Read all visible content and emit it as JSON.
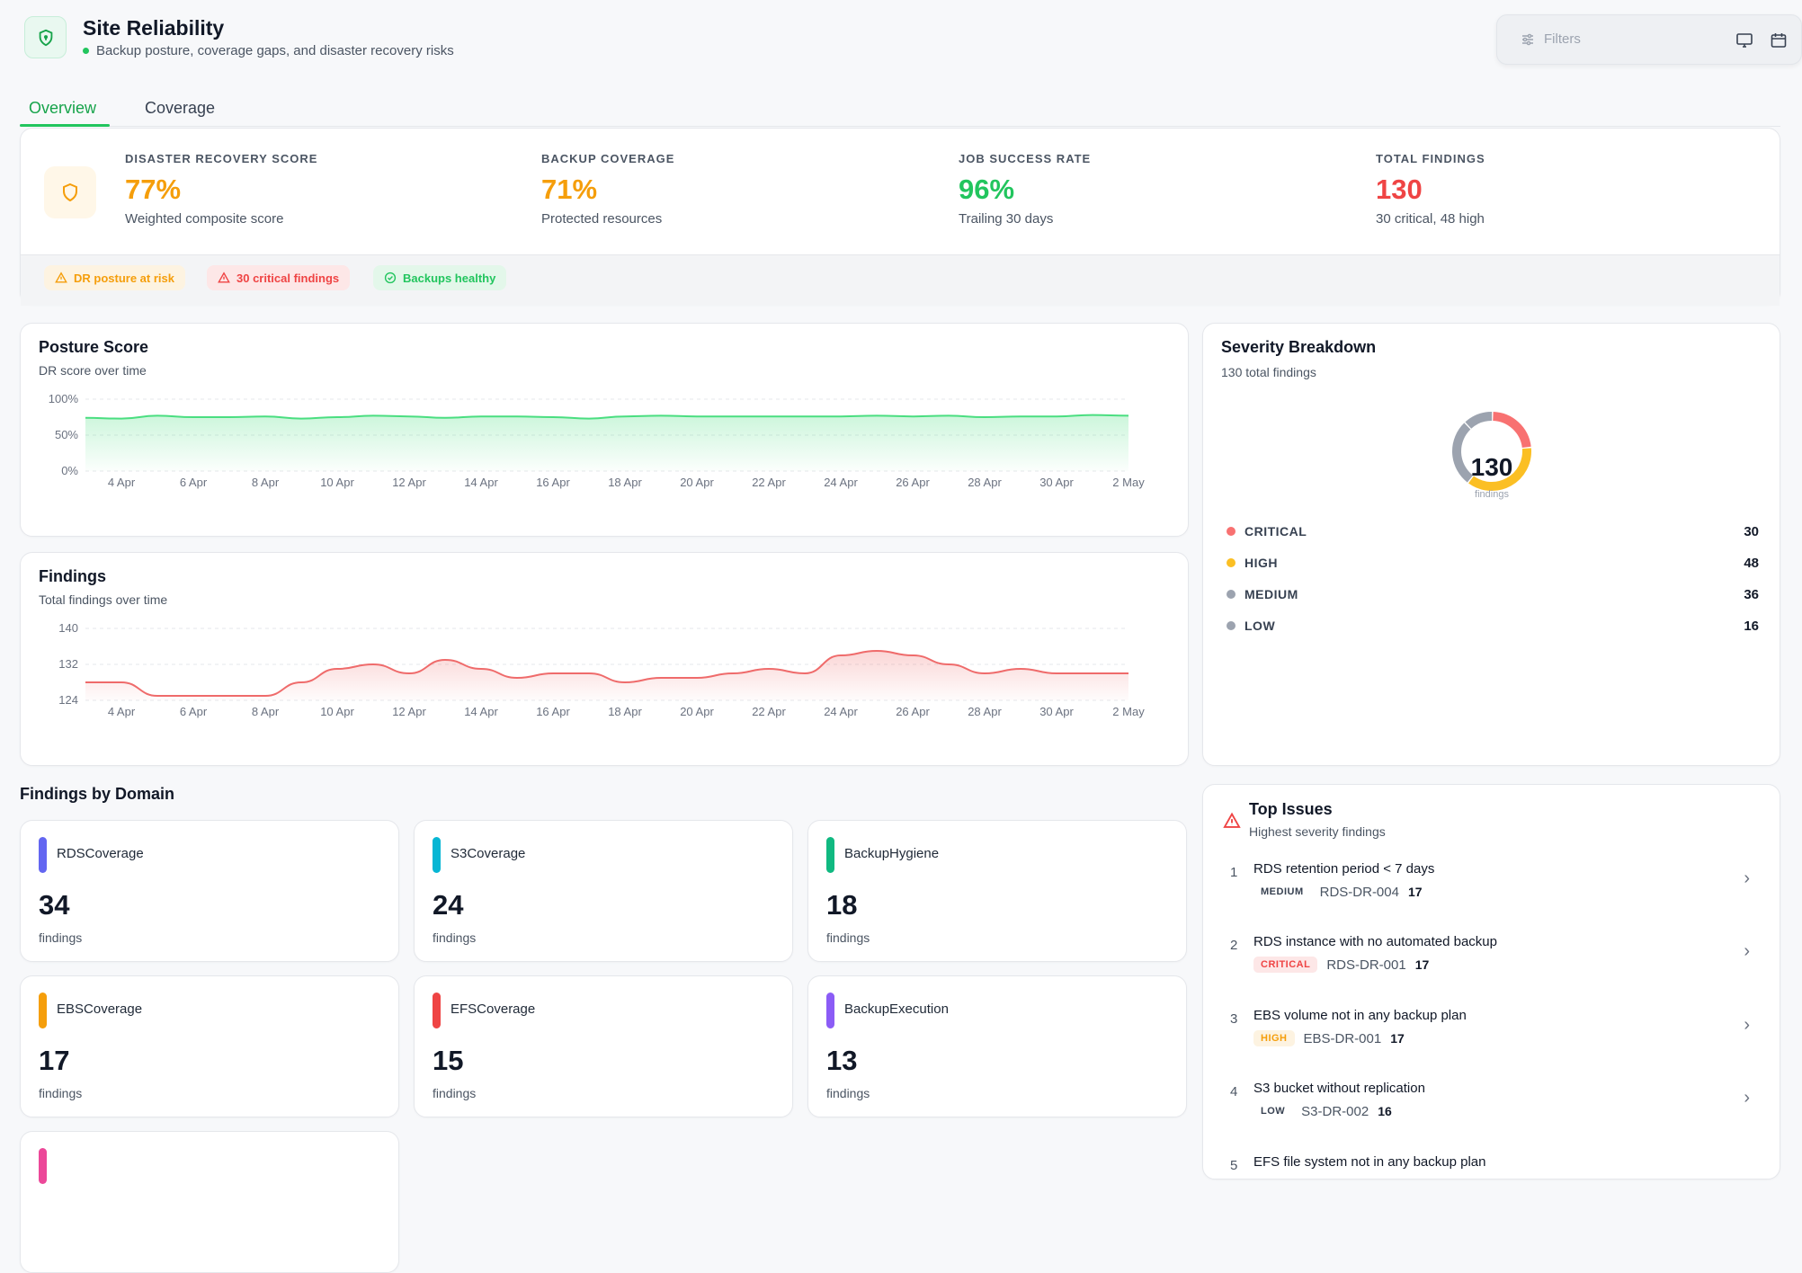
{
  "header": {
    "title": "Site Reliability",
    "subtitle": "Backup posture, coverage gaps, and disaster recovery risks",
    "filters_placeholder": "Filters"
  },
  "tabs": [
    {
      "label": "Overview",
      "active": true
    },
    {
      "label": "Coverage",
      "active": false
    }
  ],
  "kpis": [
    {
      "label": "DISASTER RECOVERY SCORE",
      "value": "77%",
      "sub": "Weighted composite score",
      "color": "#f59e0b"
    },
    {
      "label": "BACKUP COVERAGE",
      "value": "71%",
      "sub": "Protected resources",
      "color": "#f59e0b"
    },
    {
      "label": "JOB SUCCESS RATE",
      "value": "96%",
      "sub": "Trailing 30 days",
      "color": "#22c55e"
    },
    {
      "label": "TOTAL FINDINGS",
      "value": "130",
      "sub": "30 critical, 48 high",
      "color": "#ef4444"
    }
  ],
  "badges": [
    {
      "label": "DR posture at risk",
      "icon": "warning-icon",
      "color": "#f59e0b",
      "bg": "#fdf3e1"
    },
    {
      "label": "30 critical findings",
      "icon": "warning-icon",
      "color": "#ef4444",
      "bg": "#fde7e7"
    },
    {
      "label": "Backups healthy",
      "icon": "check-circle-icon",
      "color": "#22c55e",
      "bg": "#e3f7ea"
    }
  ],
  "posture_chart": {
    "title": "Posture Score",
    "subtitle": "DR score over time",
    "color": "#4ade80",
    "chart_data": {
      "type": "area",
      "x": [
        "3 Apr",
        "4 Apr",
        "5 Apr",
        "6 Apr",
        "7 Apr",
        "8 Apr",
        "9 Apr",
        "10 Apr",
        "11 Apr",
        "12 Apr",
        "13 Apr",
        "14 Apr",
        "15 Apr",
        "16 Apr",
        "17 Apr",
        "18 Apr",
        "19 Apr",
        "20 Apr",
        "21 Apr",
        "22 Apr",
        "23 Apr",
        "24 Apr",
        "25 Apr",
        "26 Apr",
        "27 Apr",
        "28 Apr",
        "29 Apr",
        "30 Apr",
        "1 May",
        "2 May"
      ],
      "x_ticks": [
        "4 Apr",
        "6 Apr",
        "8 Apr",
        "10 Apr",
        "12 Apr",
        "14 Apr",
        "16 Apr",
        "18 Apr",
        "20 Apr",
        "22 Apr",
        "24 Apr",
        "26 Apr",
        "28 Apr",
        "30 Apr",
        "2 May"
      ],
      "values": [
        74,
        73,
        77,
        75,
        75,
        76,
        73,
        75,
        77,
        76,
        74,
        76,
        76,
        75,
        73,
        76,
        77,
        76,
        76,
        76,
        76,
        76,
        77,
        76,
        77,
        75,
        76,
        76,
        78,
        77
      ],
      "y_ticks": [
        "100%",
        "50%",
        "0%"
      ],
      "ylim": [
        0,
        100
      ]
    }
  },
  "findings_chart": {
    "title": "Findings",
    "subtitle": "Total findings over time",
    "color": "#ef6b6b",
    "chart_data": {
      "type": "area",
      "x": [
        "3 Apr",
        "4 Apr",
        "5 Apr",
        "6 Apr",
        "7 Apr",
        "8 Apr",
        "9 Apr",
        "10 Apr",
        "11 Apr",
        "12 Apr",
        "13 Apr",
        "14 Apr",
        "15 Apr",
        "16 Apr",
        "17 Apr",
        "18 Apr",
        "19 Apr",
        "20 Apr",
        "21 Apr",
        "22 Apr",
        "23 Apr",
        "24 Apr",
        "25 Apr",
        "26 Apr",
        "27 Apr",
        "28 Apr",
        "29 Apr",
        "30 Apr",
        "1 May",
        "2 May"
      ],
      "x_ticks": [
        "4 Apr",
        "6 Apr",
        "8 Apr",
        "10 Apr",
        "12 Apr",
        "14 Apr",
        "16 Apr",
        "18 Apr",
        "20 Apr",
        "22 Apr",
        "24 Apr",
        "26 Apr",
        "28 Apr",
        "30 Apr",
        "2 May"
      ],
      "values": [
        128,
        128,
        125,
        125,
        125,
        125,
        128,
        131,
        132,
        130,
        133,
        131,
        129,
        130,
        130,
        128,
        129,
        129,
        130,
        131,
        130,
        134,
        135,
        134,
        132,
        130,
        131,
        130,
        130,
        130
      ],
      "y_ticks": [
        "140",
        "132",
        "124"
      ],
      "ylim": [
        124,
        140
      ]
    }
  },
  "severity": {
    "title": "Severity Breakdown",
    "subtitle": "130 total findings",
    "total": "130",
    "total_label": "findings",
    "chart_data": {
      "type": "pie",
      "categories": [
        "CRITICAL",
        "HIGH",
        "MEDIUM",
        "LOW"
      ],
      "values": [
        30,
        48,
        36,
        16
      ],
      "colors": [
        "#f87171",
        "#fbbf24",
        "#9ca3af",
        "#9ca3af"
      ]
    }
  },
  "domains": {
    "title": "Findings by Domain",
    "unit": "findings",
    "items": [
      {
        "name": "RDSCoverage",
        "value": "34",
        "color": "#6366f1"
      },
      {
        "name": "S3Coverage",
        "value": "24",
        "color": "#06b6d4"
      },
      {
        "name": "BackupHygiene",
        "value": "18",
        "color": "#10b981"
      },
      {
        "name": "EBSCoverage",
        "value": "17",
        "color": "#f59e0b"
      },
      {
        "name": "EFSCoverage",
        "value": "15",
        "color": "#ef4444"
      },
      {
        "name": "BackupExecution",
        "value": "13",
        "color": "#8b5cf6"
      },
      {
        "name": "",
        "value": "",
        "color": "#ec4899"
      }
    ]
  },
  "top_issues": {
    "title": "Top Issues",
    "subtitle": "Highest severity findings",
    "items": [
      {
        "num": "1",
        "title": "RDS retention period < 7 days",
        "severity": "MEDIUM",
        "sev_color": "#374151",
        "sev_bg": "transparent",
        "id": "RDS-DR-004",
        "count": "17"
      },
      {
        "num": "2",
        "title": "RDS instance with no automated backup",
        "severity": "CRITICAL",
        "sev_color": "#ef4444",
        "sev_bg": "#fde7e7",
        "id": "RDS-DR-001",
        "count": "17"
      },
      {
        "num": "3",
        "title": "EBS volume not in any backup plan",
        "severity": "HIGH",
        "sev_color": "#f59e0b",
        "sev_bg": "#fdf3e1",
        "id": "EBS-DR-001",
        "count": "17"
      },
      {
        "num": "4",
        "title": "S3 bucket without replication",
        "severity": "LOW",
        "sev_color": "#374151",
        "sev_bg": "transparent",
        "id": "S3-DR-002",
        "count": "16"
      },
      {
        "num": "5",
        "title": "EFS file system not in any backup plan",
        "severity": "",
        "sev_color": "#374151",
        "sev_bg": "transparent",
        "id": "",
        "count": ""
      }
    ]
  }
}
